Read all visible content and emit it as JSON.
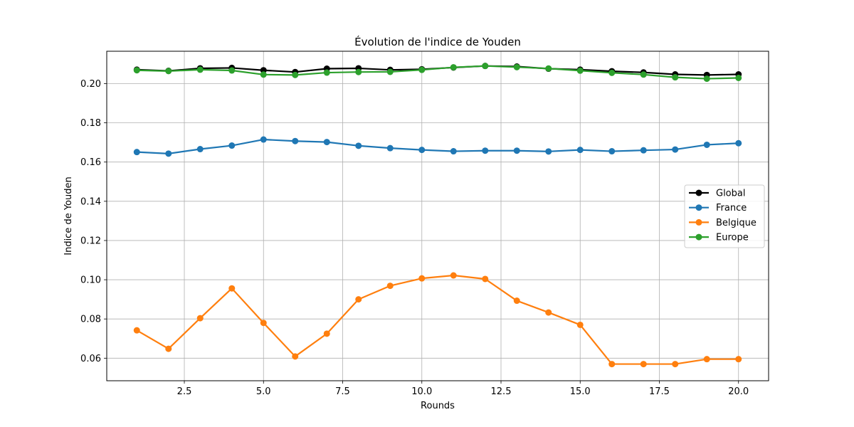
{
  "chart_data": {
    "type": "line",
    "title": "Évolution de l'indice de Youden",
    "xlabel": "Rounds",
    "ylabel": "Indice de Youden",
    "xlim": [
      0.05,
      20.95
    ],
    "ylim": [
      0.0485,
      0.2165
    ],
    "xticks": [
      2.5,
      5.0,
      7.5,
      10.0,
      12.5,
      15.0,
      17.5,
      20.0
    ],
    "xtick_labels": [
      "2.5",
      "5.0",
      "7.5",
      "10.0",
      "12.5",
      "15.0",
      "17.5",
      "20.0"
    ],
    "yticks": [
      0.06,
      0.08,
      0.1,
      0.12,
      0.14,
      0.16,
      0.18,
      0.2
    ],
    "ytick_labels": [
      "0.06",
      "0.08",
      "0.10",
      "0.12",
      "0.14",
      "0.16",
      "0.18",
      "0.20"
    ],
    "grid": true,
    "legend_position": "center-right",
    "x": [
      1,
      2,
      3,
      4,
      5,
      6,
      7,
      8,
      9,
      10,
      11,
      12,
      13,
      14,
      15,
      16,
      17,
      18,
      19,
      20
    ],
    "series": [
      {
        "name": "Global",
        "color": "#000000",
        "values": [
          0.2071,
          0.2065,
          0.2078,
          0.208,
          0.2068,
          0.2059,
          0.2076,
          0.2078,
          0.207,
          0.2073,
          0.2082,
          0.209,
          0.2087,
          0.2076,
          0.2071,
          0.2063,
          0.2057,
          0.2047,
          0.2044,
          0.2047
        ]
      },
      {
        "name": "France",
        "color": "#1f77b4",
        "values": [
          0.1651,
          0.1643,
          0.1666,
          0.1684,
          0.1715,
          0.1707,
          0.1702,
          0.1683,
          0.1671,
          0.1662,
          0.1655,
          0.1658,
          0.1658,
          0.1654,
          0.1662,
          0.1655,
          0.166,
          0.1664,
          0.1688,
          0.1696
        ]
      },
      {
        "name": "Belgique",
        "color": "#ff7f0e",
        "values": [
          0.0742,
          0.0648,
          0.0804,
          0.0956,
          0.078,
          0.0609,
          0.0725,
          0.09,
          0.0969,
          0.1007,
          0.1022,
          0.1004,
          0.0893,
          0.0833,
          0.077,
          0.057,
          0.057,
          0.057,
          0.0595,
          0.0595
        ]
      },
      {
        "name": "Europe",
        "color": "#2ca02c",
        "values": [
          0.2068,
          0.2064,
          0.2071,
          0.2067,
          0.2046,
          0.2044,
          0.2056,
          0.2059,
          0.206,
          0.207,
          0.2083,
          0.209,
          0.2084,
          0.2077,
          0.2066,
          0.2055,
          0.2046,
          0.2032,
          0.2025,
          0.2029
        ]
      }
    ]
  }
}
